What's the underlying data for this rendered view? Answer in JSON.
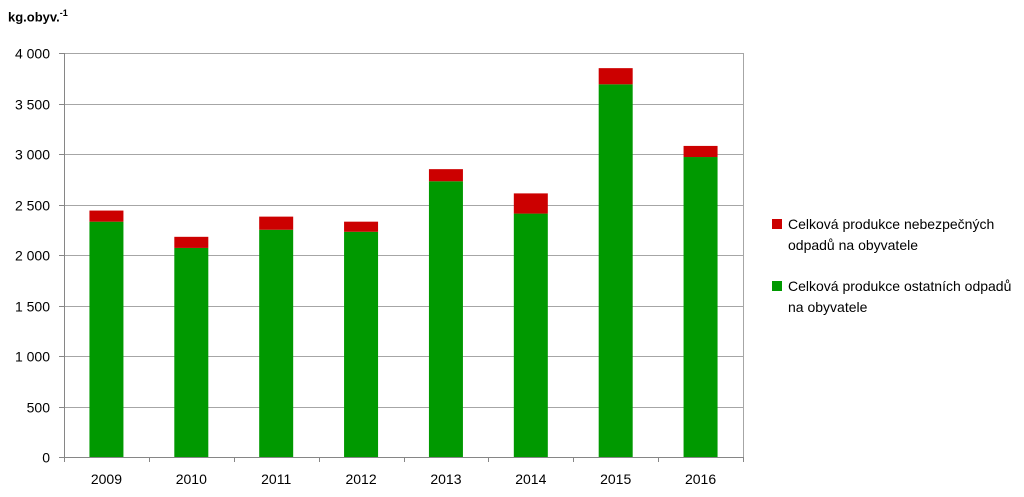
{
  "chart_data": {
    "type": "bar",
    "stacked": true,
    "ylabel": "kg.obyv.",
    "ylabel_sup": "-1",
    "categories": [
      "2009",
      "2010",
      "2011",
      "2012",
      "2013",
      "2014",
      "2015",
      "2016"
    ],
    "series": [
      {
        "name": "Celková produkce ostatních odpadů na obyvatele",
        "color": "#009900",
        "values": [
          2330,
          2070,
          2250,
          2230,
          2730,
          2410,
          3690,
          2970
        ]
      },
      {
        "name": "Celková produkce nebezpečných odpadů na obyvatele",
        "color": "#cc0000",
        "values": [
          110,
          110,
          130,
          100,
          120,
          200,
          160,
          110
        ]
      }
    ],
    "ylim": [
      0,
      4000
    ],
    "yticks": [
      0,
      500,
      1000,
      1500,
      2000,
      2500,
      3000,
      3500,
      4000
    ],
    "ytick_labels": [
      "0",
      "500",
      "1 000",
      "1 500",
      "2 000",
      "2 500",
      "3 000",
      "3 500",
      "4 000"
    ],
    "grid": true,
    "legend_position": "right"
  }
}
